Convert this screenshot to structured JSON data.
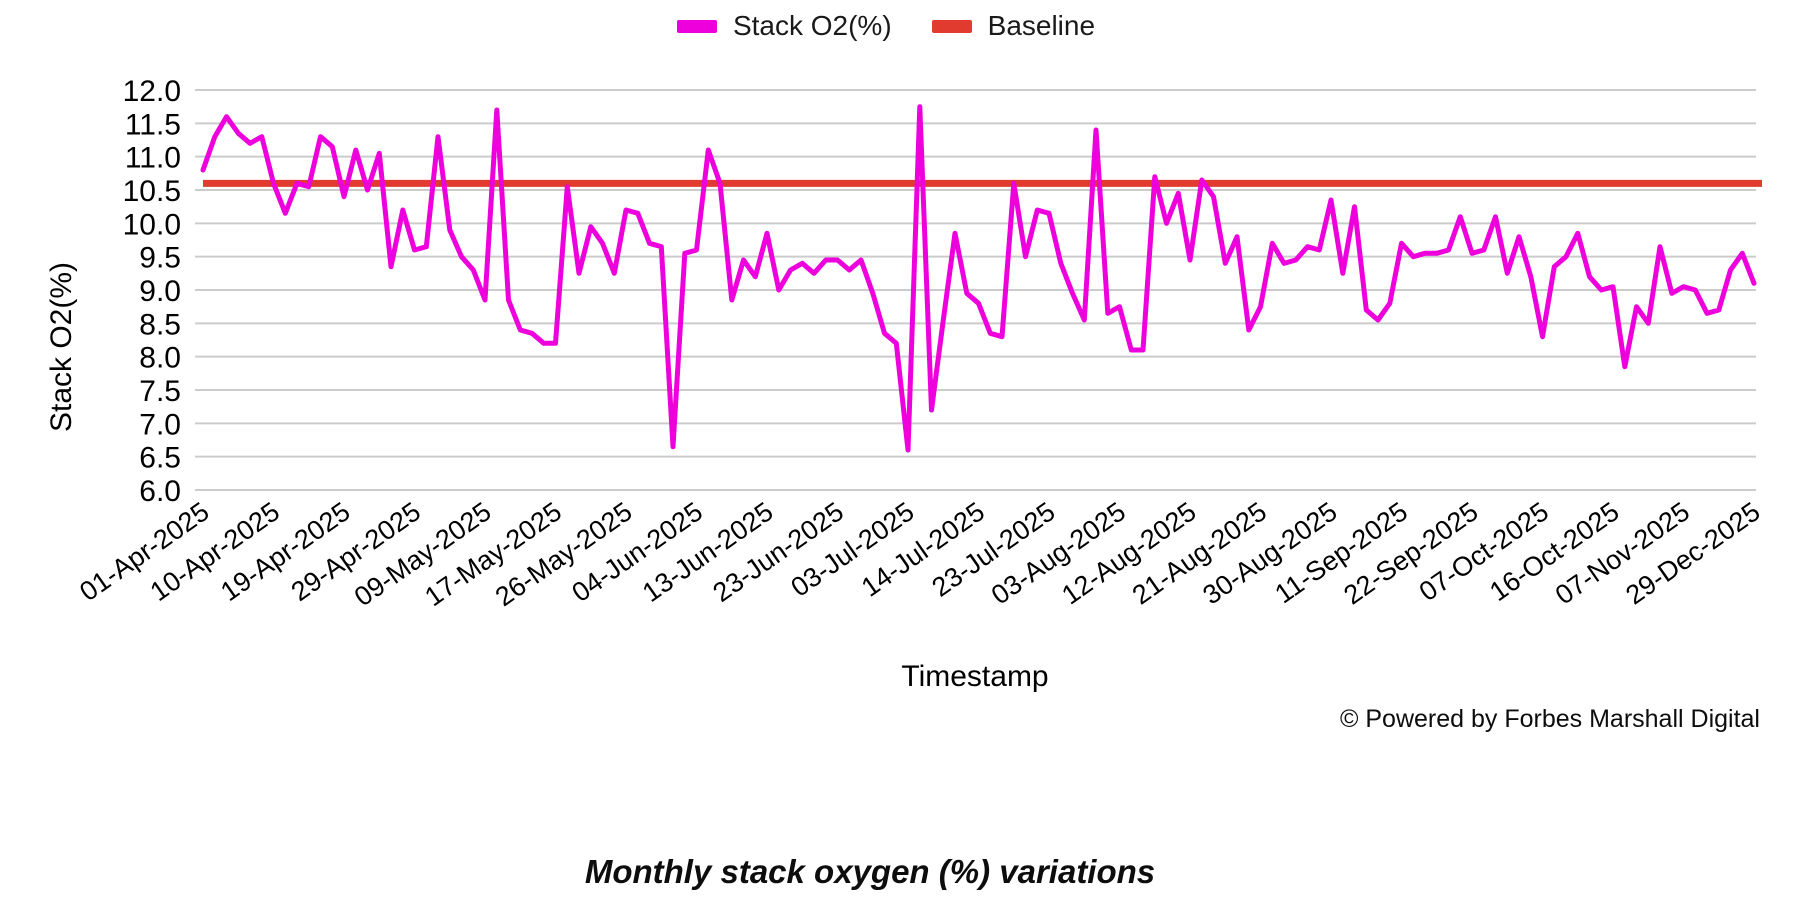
{
  "page": {
    "footer": "© Powered by Forbes Marshall Digital",
    "caption": "Monthly stack oxygen (%) variations"
  },
  "legend": {
    "series_label": "Stack O2(%)",
    "baseline_label": "Baseline"
  },
  "chart_data": {
    "type": "line",
    "title": "",
    "xlabel": "Timestamp",
    "ylabel": "Stack O2(%)",
    "ylim": [
      6.0,
      12.0
    ],
    "ytick_step": 0.5,
    "grid": true,
    "legend_position": "top-center",
    "x_tick_labels": [
      "01-Apr-2025",
      "10-Apr-2025",
      "19-Apr-2025",
      "29-Apr-2025",
      "09-May-2025",
      "17-May-2025",
      "26-May-2025",
      "04-Jun-2025",
      "13-Jun-2025",
      "23-Jun-2025",
      "03-Jul-2025",
      "14-Jul-2025",
      "23-Jul-2025",
      "03-Aug-2025",
      "12-Aug-2025",
      "21-Aug-2025",
      "30-Aug-2025",
      "11-Sep-2025",
      "22-Sep-2025",
      "07-Oct-2025",
      "16-Oct-2025",
      "07-Nov-2025",
      "29-Dec-2025"
    ],
    "tick_every": 6,
    "series": [
      {
        "name": "Stack O2(%)",
        "color": "#EE00DD",
        "values": [
          10.8,
          11.3,
          11.6,
          11.35,
          11.2,
          11.3,
          10.6,
          10.15,
          10.6,
          10.55,
          11.3,
          11.15,
          10.4,
          11.1,
          10.5,
          11.05,
          9.35,
          10.2,
          9.6,
          9.65,
          11.3,
          9.9,
          9.5,
          9.3,
          8.85,
          11.7,
          8.85,
          8.4,
          8.35,
          8.2,
          8.2,
          10.55,
          9.25,
          9.95,
          9.7,
          9.25,
          10.2,
          10.15,
          9.7,
          9.65,
          6.65,
          9.55,
          9.6,
          11.1,
          10.6,
          8.85,
          9.45,
          9.2,
          9.85,
          9.0,
          9.3,
          9.4,
          9.25,
          9.45,
          9.45,
          9.3,
          9.45,
          8.95,
          8.35,
          8.2,
          6.6,
          11.75,
          7.2,
          8.55,
          9.85,
          8.95,
          8.8,
          8.35,
          8.3,
          10.6,
          9.5,
          10.2,
          10.15,
          9.4,
          8.95,
          8.55,
          11.4,
          8.65,
          8.75,
          8.1,
          8.1,
          10.7,
          10.0,
          10.45,
          9.45,
          10.65,
          10.4,
          9.4,
          9.8,
          8.4,
          8.75,
          9.7,
          9.4,
          9.45,
          9.65,
          9.6,
          10.35,
          9.25,
          10.25,
          8.7,
          8.55,
          8.8,
          9.7,
          9.5,
          9.55,
          9.55,
          9.6,
          10.1,
          9.55,
          9.6,
          10.1,
          9.25,
          9.8,
          9.2,
          8.3,
          9.35,
          9.5,
          9.85,
          9.2,
          9.0,
          9.05,
          7.85,
          8.75,
          8.5,
          9.65,
          8.95,
          9.05,
          9.0,
          8.65,
          8.7,
          9.3,
          9.55,
          9.1
        ]
      }
    ],
    "baseline": {
      "name": "Baseline",
      "color": "#E03B2E",
      "value": 10.6
    }
  }
}
